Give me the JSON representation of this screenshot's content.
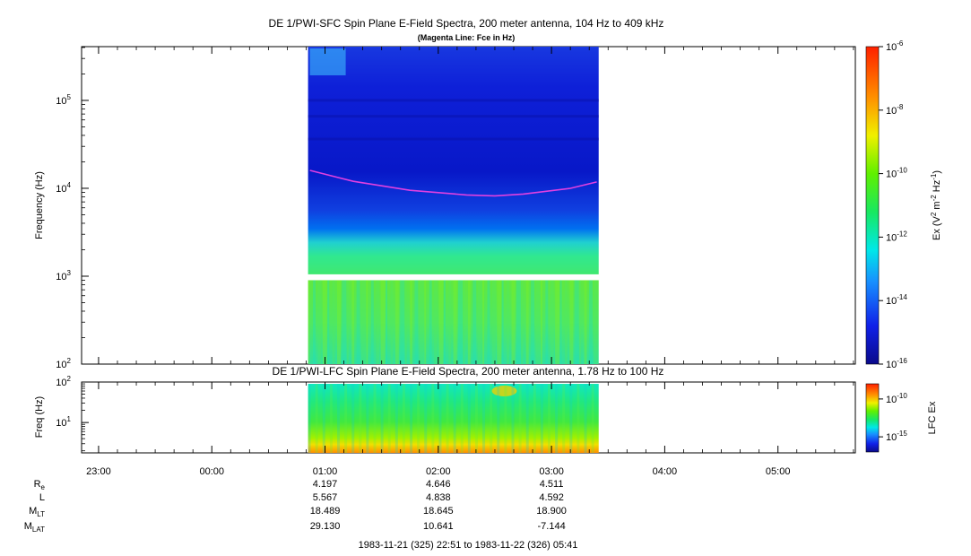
{
  "chart_data": [
    {
      "type": "heatmap",
      "title": "DE 1/PWI-SFC  Spin Plane E-Field Spectra, 200 meter antenna, 104 Hz to 409 kHz",
      "subtitle": "(Magenta Line: Fce in Hz)",
      "ylabel": "Frequency (Hz)",
      "yscale": "log",
      "ylim": [
        100,
        409000
      ],
      "y_ticks": [
        {
          "base": "10",
          "exp": "2",
          "value": 100
        },
        {
          "base": "10",
          "exp": "3",
          "value": 1000
        },
        {
          "base": "10",
          "exp": "4",
          "value": 10000
        },
        {
          "base": "10",
          "exp": "5",
          "value": 100000
        }
      ],
      "data_start_time": "00:51",
      "data_end_time": "03:25",
      "data_gap_hz": [
        900,
        1050
      ],
      "fce_line": {
        "color": "#e040e0",
        "x": [
          "00:52",
          "01:15",
          "01:45",
          "02:15",
          "02:30",
          "02:45",
          "03:10",
          "03:24"
        ],
        "y": [
          16000,
          12000,
          9500,
          8400,
          8200,
          8600,
          10000,
          11800
        ]
      },
      "colorbar": {
        "label_base": "Ex (V",
        "label_sup1": "2",
        "label_mid": " m",
        "label_sup2": "-2",
        "label_mid2": " Hz",
        "label_sup3": "-1",
        "label_end": ")",
        "scale": "log",
        "range": [
          1e-16,
          1e-06
        ],
        "ticks": [
          {
            "base": "10",
            "exp": "-6",
            "value": 1e-06
          },
          {
            "base": "10",
            "exp": "-8",
            "value": 1e-08
          },
          {
            "base": "10",
            "exp": "-10",
            "value": 1e-10
          },
          {
            "base": "10",
            "exp": "-12",
            "value": 1e-12
          },
          {
            "base": "10",
            "exp": "-14",
            "value": 1e-14
          },
          {
            "base": "10",
            "exp": "-16",
            "value": 1e-16
          }
        ]
      }
    },
    {
      "type": "heatmap",
      "title": "DE 1/PWI-LFC  Spin Plane E-Field Spectra, 200 meter antenna, 1.78 Hz to 100 Hz",
      "ylabel": "Freq (Hz)",
      "yscale": "log",
      "ylim": [
        1.78,
        100
      ],
      "y_ticks": [
        {
          "base": "10",
          "exp": "1",
          "value": 10
        },
        {
          "base": "10",
          "exp": "2",
          "value": 100
        }
      ],
      "data_start_time": "00:51",
      "data_end_time": "03:25",
      "colorbar": {
        "label": "LFC Ex",
        "scale": "log",
        "range": [
          1e-17,
          1e-08
        ],
        "ticks": [
          {
            "base": "10",
            "exp": "-10",
            "value": 1e-10
          },
          {
            "base": "10",
            "exp": "-15",
            "value": 1e-15
          }
        ]
      }
    }
  ],
  "time_axis": {
    "start": "22:51",
    "end": "05:41",
    "tick_labels": [
      {
        "label": "23:00",
        "t": "23:00"
      },
      {
        "label": "00:00",
        "t": "00:00"
      },
      {
        "label": "01:00",
        "t": "01:00"
      },
      {
        "label": "02:00",
        "t": "02:00"
      },
      {
        "label": "03:00",
        "t": "03:00"
      },
      {
        "label": "04:00",
        "t": "04:00"
      },
      {
        "label": "05:00",
        "t": "05:00"
      }
    ]
  },
  "ephemeris": {
    "rows": [
      {
        "label": "R",
        "sub": "e",
        "values": [
          "4.197",
          "4.646",
          "4.511"
        ]
      },
      {
        "label": "L",
        "sub": "",
        "values": [
          "5.567",
          "4.838",
          "4.592"
        ]
      },
      {
        "label": "M",
        "sub": "LT",
        "values": [
          "18.489",
          "18.645",
          "18.900"
        ]
      },
      {
        "label": "M",
        "sub": "LAT",
        "values": [
          "29.130",
          "10.641",
          "-7.144"
        ]
      }
    ],
    "times": [
      "01:00",
      "02:00",
      "03:00"
    ]
  },
  "date_range": "1983-11-21 (325) 22:51 to 1983-11-22 (326) 05:41"
}
